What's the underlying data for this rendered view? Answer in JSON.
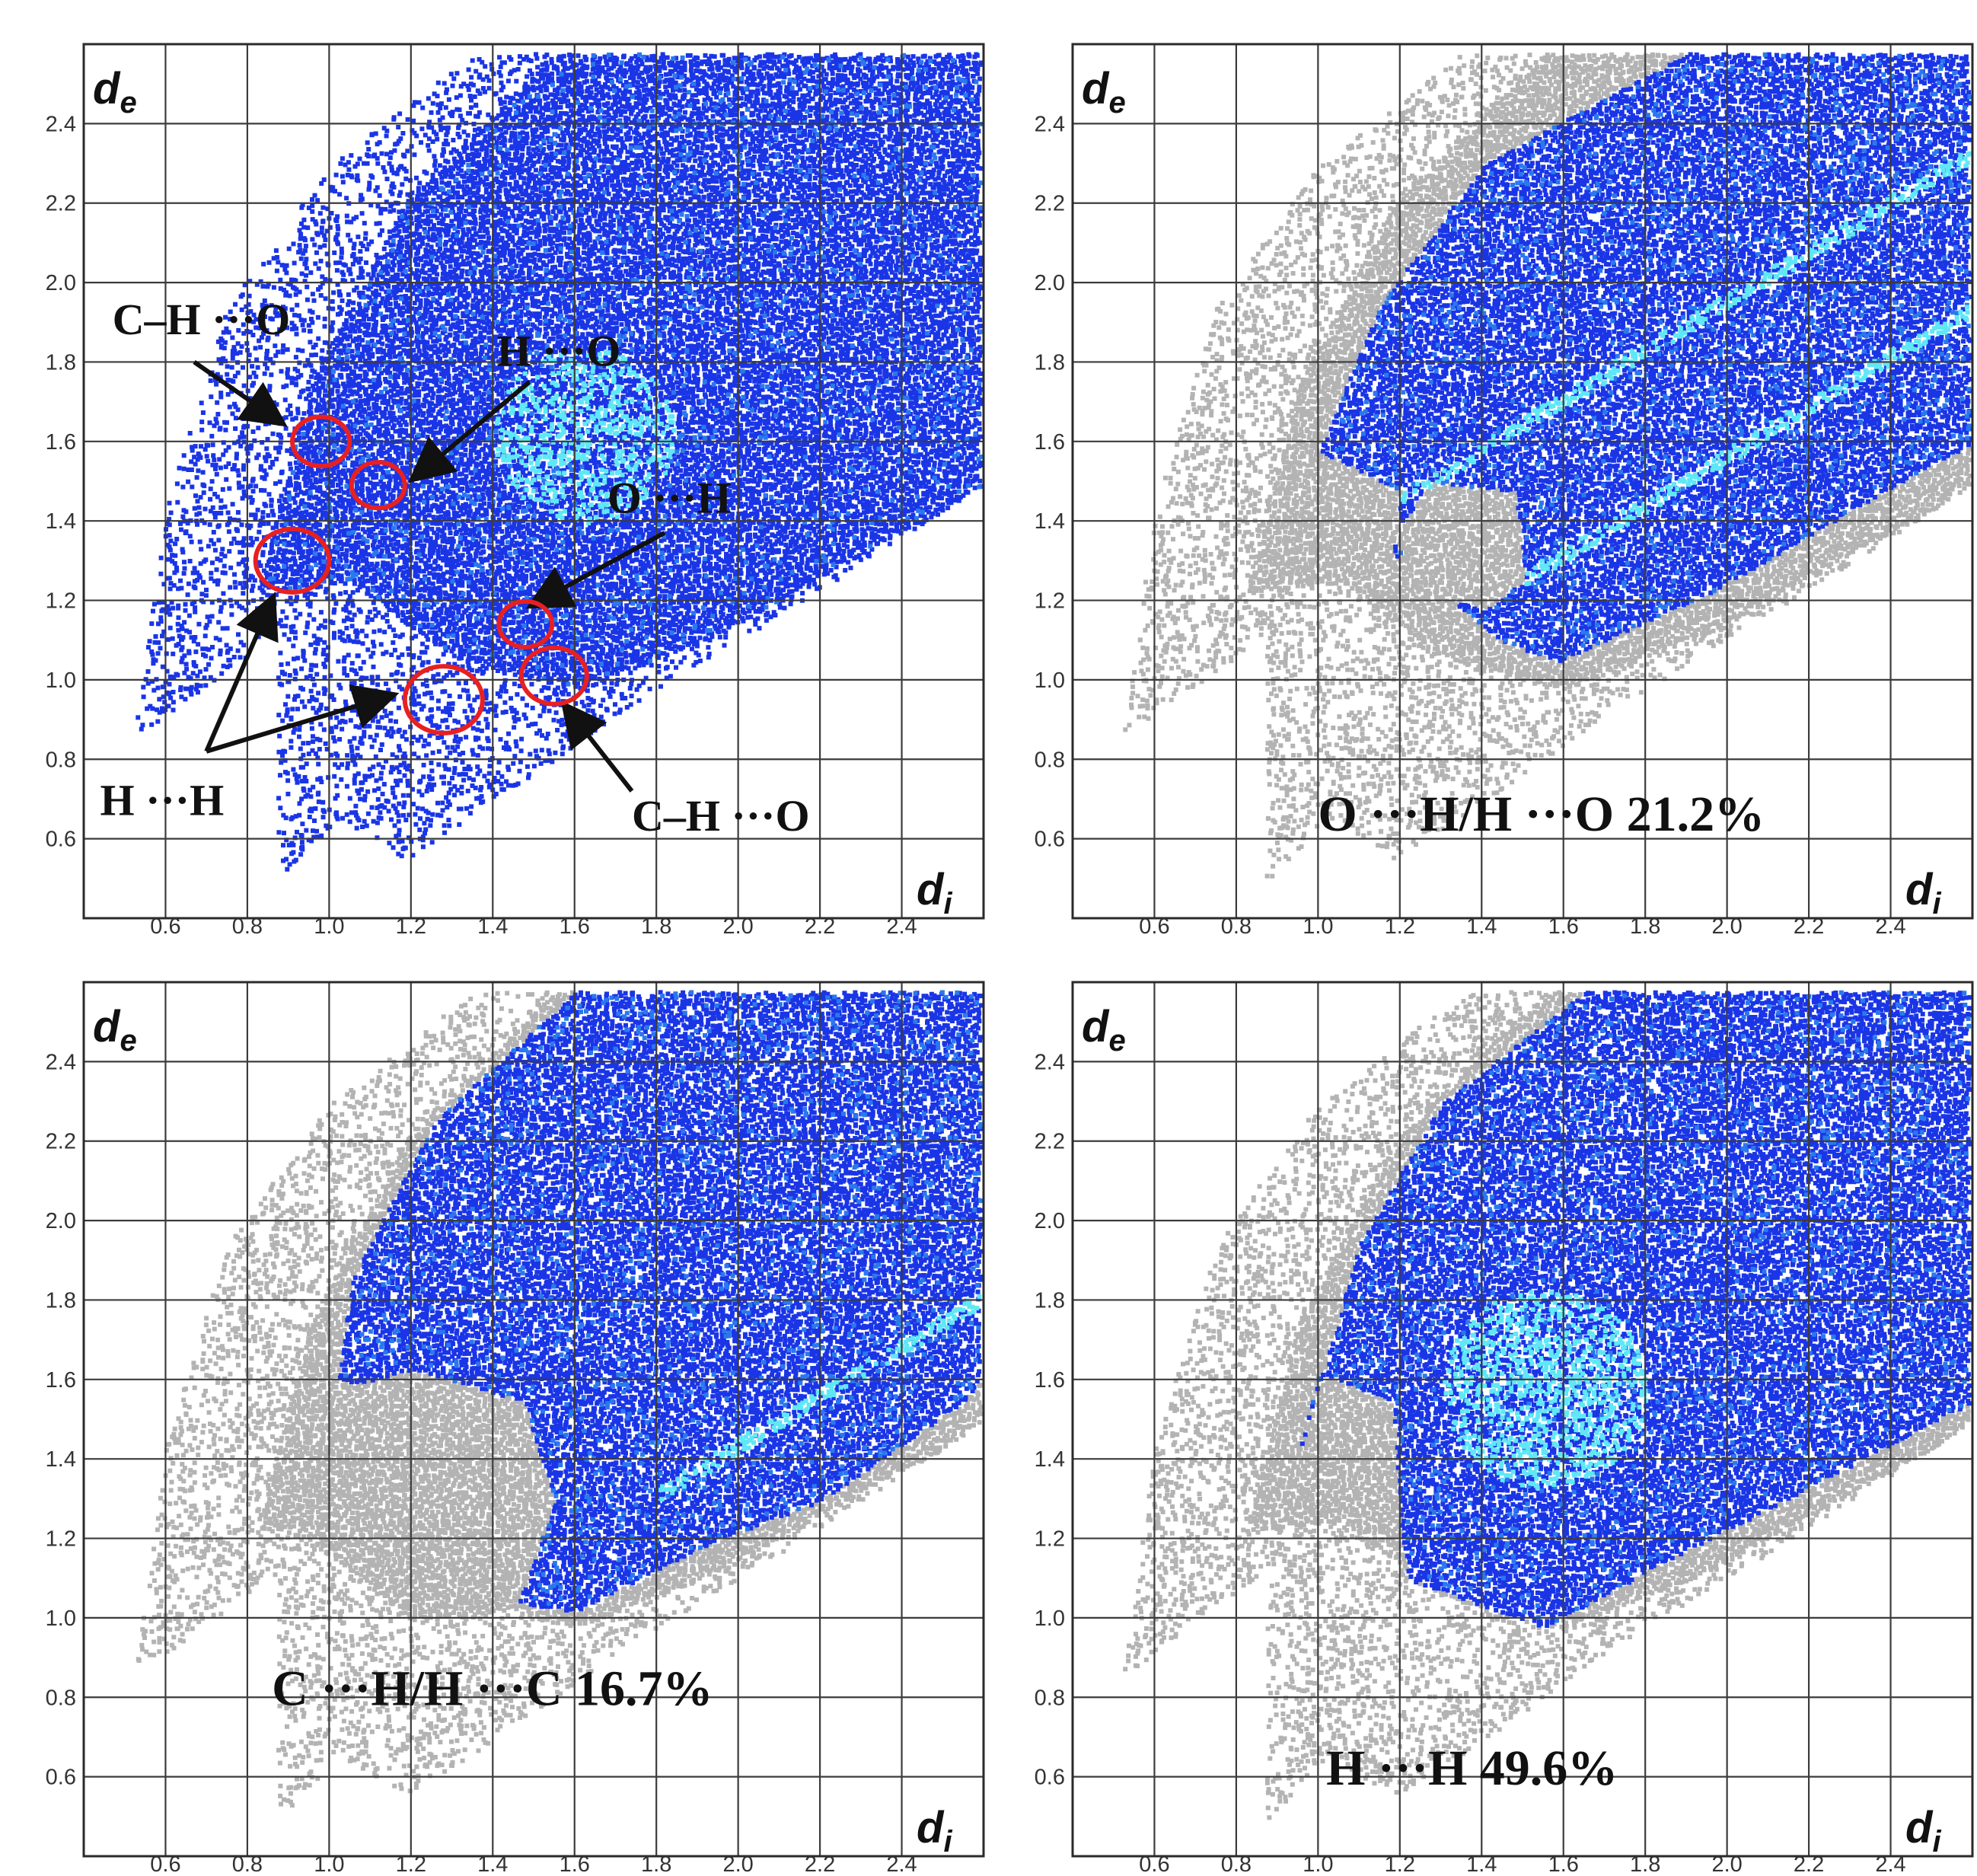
{
  "colors": {
    "point_blue": "#1a35e6",
    "point_mid": "#2a78ee",
    "point_cyan": "#5fe7f5",
    "point_gray": "#b3b3b3",
    "grid": "#3c3c3c",
    "circle_red": "#e82020",
    "arrow": "#111111"
  },
  "chart_data": [
    {
      "type": "scatter",
      "panel": "top-left",
      "title": "",
      "xlabel": "d",
      "xlabel_sub": "i",
      "ylabel": "d",
      "ylabel_sub": "e",
      "xlim": [
        0.4,
        2.6
      ],
      "ylim": [
        0.4,
        2.6
      ],
      "x_ticks": [
        "0.6",
        "0.8",
        "1.0",
        "1.2",
        "1.4",
        "1.6",
        "1.8",
        "2.0",
        "2.2",
        "2.4"
      ],
      "y_ticks": [
        "0.6",
        "0.8",
        "1.0",
        "1.2",
        "1.4",
        "1.6",
        "1.8",
        "2.0",
        "2.2",
        "2.4"
      ],
      "grid": true,
      "fingerprint": "all",
      "annotations": [
        {
          "text": "C–H ···O",
          "x": 0.47,
          "y": 1.87
        },
        {
          "text": "H ···O",
          "x": 1.41,
          "y": 1.79
        },
        {
          "text": "O ···H",
          "x": 1.68,
          "y": 1.42
        },
        {
          "text": "H ···H",
          "x": 0.44,
          "y": 0.66
        },
        {
          "text": "C–H ···O",
          "x": 1.74,
          "y": 0.62
        }
      ],
      "circles": [
        {
          "x": 0.98,
          "y": 1.6,
          "r": 0.07
        },
        {
          "x": 1.12,
          "y": 1.49,
          "r": 0.065
        },
        {
          "x": 0.91,
          "y": 1.3,
          "r": 0.09
        },
        {
          "x": 1.48,
          "y": 1.14,
          "r": 0.065
        },
        {
          "x": 1.55,
          "y": 1.01,
          "r": 0.08
        },
        {
          "x": 1.28,
          "y": 0.95,
          "r": 0.095
        }
      ],
      "arrows": [
        {
          "from": [
            0.67,
            1.8
          ],
          "to": [
            0.88,
            1.65
          ]
        },
        {
          "from": [
            1.49,
            1.75
          ],
          "to": [
            1.21,
            1.51
          ]
        },
        {
          "from": [
            1.82,
            1.37
          ],
          "to": [
            1.5,
            1.19
          ]
        },
        {
          "from": [
            0.7,
            0.82
          ],
          "to": [
            0.86,
            1.2
          ]
        },
        {
          "from": [
            0.7,
            0.82
          ],
          "to": [
            1.15,
            0.96
          ]
        },
        {
          "from": [
            1.74,
            0.72
          ],
          "to": [
            1.58,
            0.93
          ]
        }
      ]
    },
    {
      "type": "scatter",
      "panel": "top-right",
      "title": "",
      "xlabel": "d",
      "xlabel_sub": "i",
      "ylabel": "d",
      "ylabel_sub": "e",
      "xlim": [
        0.4,
        2.6
      ],
      "ylim": [
        0.4,
        2.6
      ],
      "x_ticks": [
        "0.6",
        "0.8",
        "1.0",
        "1.2",
        "1.4",
        "1.6",
        "1.8",
        "2.0",
        "2.2",
        "2.4"
      ],
      "y_ticks": [
        "0.6",
        "0.8",
        "1.0",
        "1.2",
        "1.4",
        "1.6",
        "1.8",
        "2.0",
        "2.2",
        "2.4"
      ],
      "grid": true,
      "fingerprint": "O···H / H···O",
      "label": "O ···H/H ···O  21.2%",
      "contact": "O···H/H···O",
      "percent": 21.2
    },
    {
      "type": "scatter",
      "panel": "bottom-left",
      "title": "",
      "xlabel": "d",
      "xlabel_sub": "i",
      "ylabel": "d",
      "ylabel_sub": "e",
      "xlim": [
        0.4,
        2.6
      ],
      "ylim": [
        0.4,
        2.6
      ],
      "x_ticks": [
        "0.6",
        "0.8",
        "1.0",
        "1.2",
        "1.4",
        "1.6",
        "1.8",
        "2.0",
        "2.2",
        "2.4"
      ],
      "y_ticks": [
        "0.6",
        "0.8",
        "1.0",
        "1.2",
        "1.4",
        "1.6",
        "1.8",
        "2.0",
        "2.2",
        "2.4"
      ],
      "grid": true,
      "fingerprint": "C···H / H···C",
      "label": "C ···H/H ···C  16.7%",
      "contact": "C···H/H···C",
      "percent": 16.7
    },
    {
      "type": "scatter",
      "panel": "bottom-right",
      "title": "",
      "xlabel": "d",
      "xlabel_sub": "i",
      "ylabel": "d",
      "ylabel_sub": "e",
      "xlim": [
        0.4,
        2.6
      ],
      "ylim": [
        0.4,
        2.6
      ],
      "x_ticks": [
        "0.6",
        "0.8",
        "1.0",
        "1.2",
        "1.4",
        "1.6",
        "1.8",
        "2.0",
        "2.2",
        "2.4"
      ],
      "y_ticks": [
        "0.6",
        "0.8",
        "1.0",
        "1.2",
        "1.4",
        "1.6",
        "1.8",
        "2.0",
        "2.2",
        "2.4"
      ],
      "grid": true,
      "fingerprint": "H···H",
      "label": "H ···H  49.6%",
      "contact": "H···H",
      "percent": 49.6
    }
  ]
}
